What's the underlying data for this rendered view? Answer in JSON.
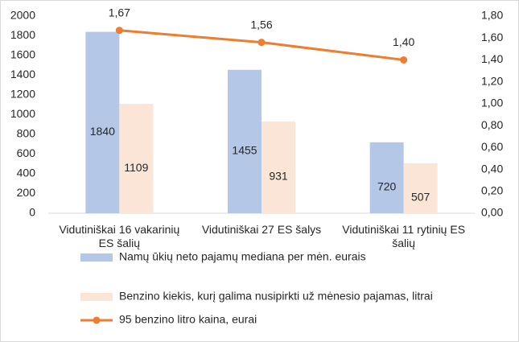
{
  "chart_data": {
    "type": "bar",
    "categories": [
      "Vidutiniškai 16 vakarinių ES šalių",
      "Vidutiniškai 27 ES šalys",
      "Vidutiniškai 11 rytinių ES šalių"
    ],
    "series": [
      {
        "name": "Namų ūkių neto pajamų mediana per mėn. eurais",
        "color": "#b4c7e7",
        "values": [
          1840,
          1455,
          720
        ]
      },
      {
        "name": "Benzino kiekis, kurį galima nusipirkti už mėnesio pajamas, litrai",
        "color": "#fbe5d6",
        "values": [
          1109,
          931,
          507
        ]
      },
      {
        "name": "95 benzino litro kaina, eurai",
        "color": "#ed7d31",
        "type": "line",
        "axis": "y2",
        "values": [
          1.67,
          1.56,
          1.4
        ],
        "value_labels": [
          "1,67",
          "1,56",
          "1,40"
        ]
      }
    ],
    "ylim": [
      0,
      2000
    ],
    "yticks": [
      0,
      200,
      400,
      600,
      800,
      1000,
      1200,
      1400,
      1600,
      1800,
      2000
    ],
    "y2lim": [
      0,
      1.8
    ],
    "y2ticks": [
      {
        "value": 0,
        "label": "0,00"
      },
      {
        "value": 0.2,
        "label": "0,20"
      },
      {
        "value": 0.4,
        "label": "0,40"
      },
      {
        "value": 0.6,
        "label": "0,60"
      },
      {
        "value": 0.8,
        "label": "0,80"
      },
      {
        "value": 1.0,
        "label": "1,00"
      },
      {
        "value": 1.2,
        "label": "1,20"
      },
      {
        "value": 1.4,
        "label": "1,40"
      },
      {
        "value": 1.6,
        "label": "1,60"
      },
      {
        "value": 1.8,
        "label": "1,80"
      }
    ],
    "grid": false,
    "legend": "bottom"
  }
}
